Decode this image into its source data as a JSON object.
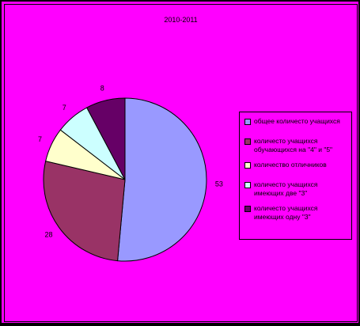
{
  "chart_data": {
    "type": "pie",
    "title": "2010-2011",
    "categories": [
      "общее количесто учащихся",
      "количесто учащихся обучающихся на \"4\" и \"5\"",
      "количество отличников",
      "количесто учащихся имеющих две \"3\"",
      "количесто учащихся имеющих одну \"3\""
    ],
    "values": [
      53,
      28,
      7,
      7,
      8
    ],
    "colors": [
      "#9999ff",
      "#993366",
      "#ffffcc",
      "#ccffff",
      "#660066"
    ],
    "legend_position": "right"
  }
}
